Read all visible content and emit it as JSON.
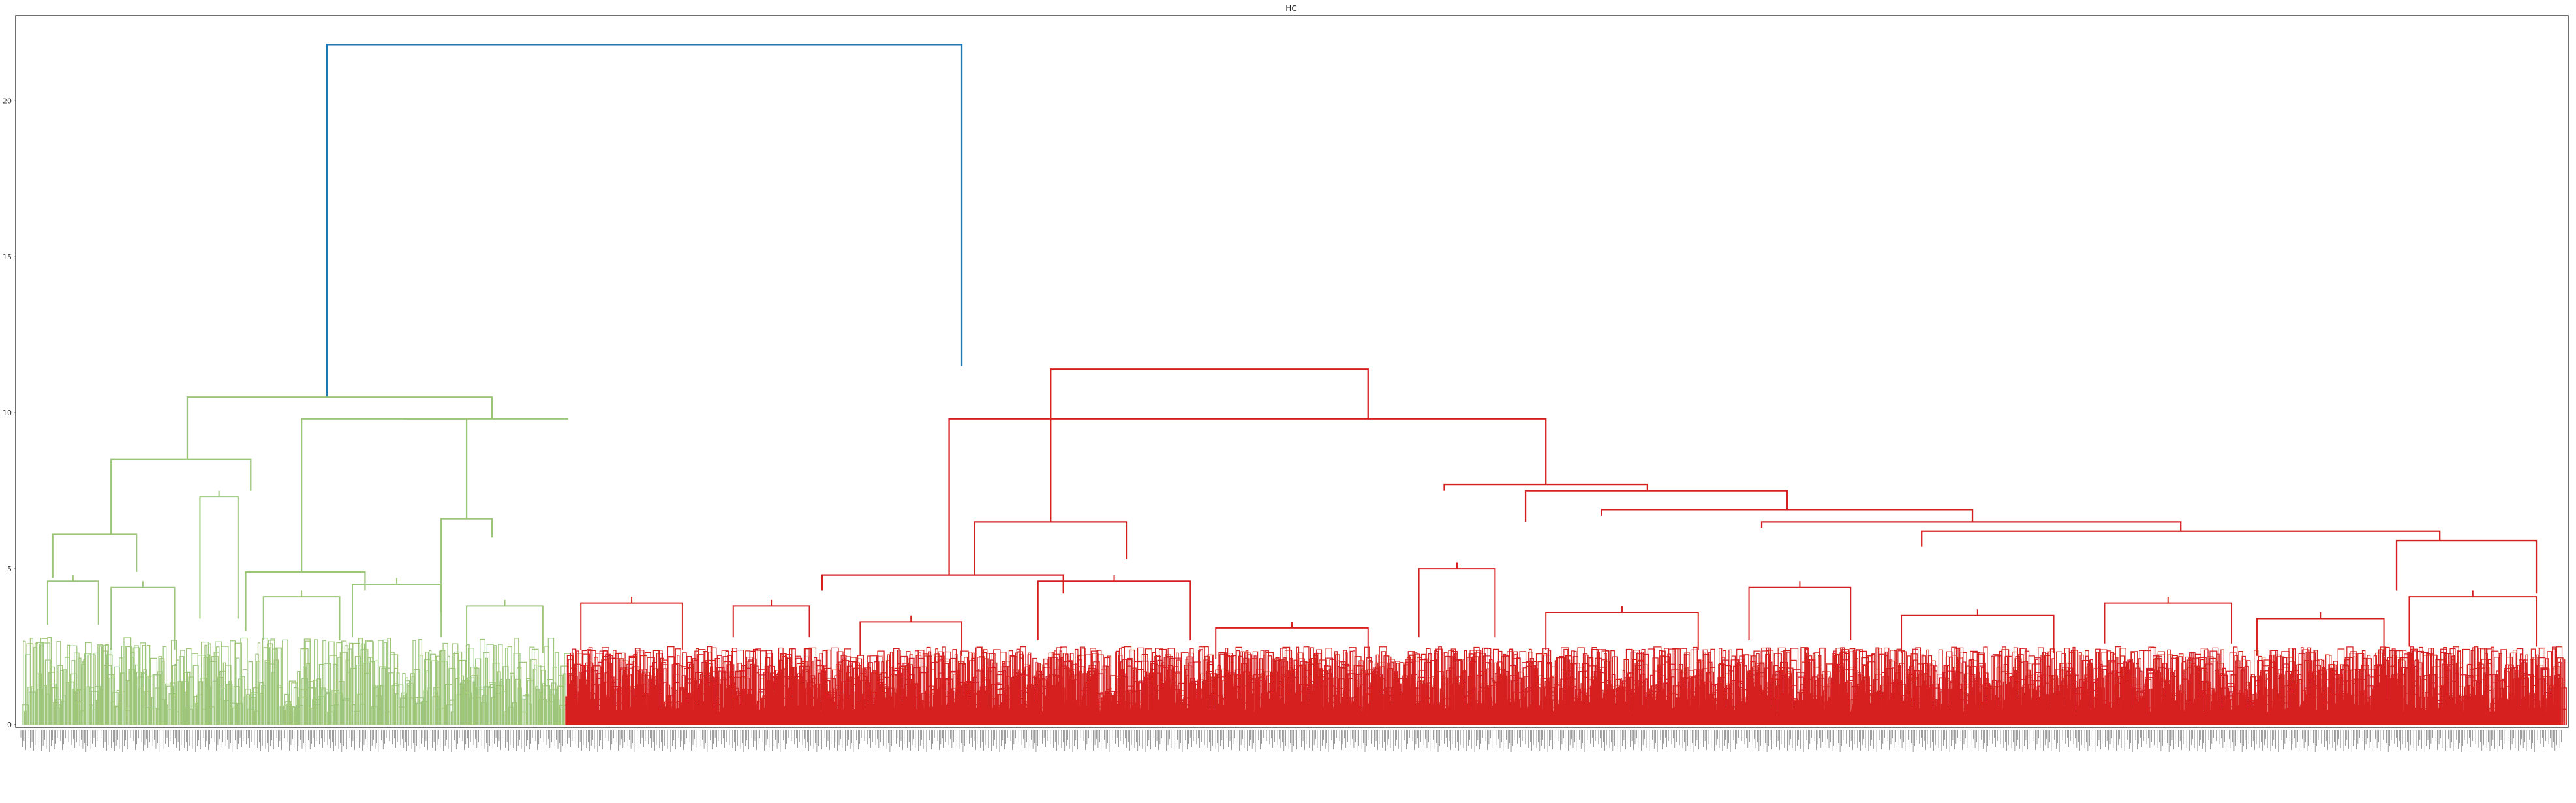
{
  "chart_data": {
    "type": "dendrogram",
    "title": "HC",
    "xlabel": "",
    "ylabel": "",
    "ylim": [
      0,
      22.5
    ],
    "yticks": [
      0,
      5,
      10,
      15,
      20
    ],
    "grid": false,
    "colors": {
      "root": "#1f77b4",
      "cluster_green": "#9dc67a",
      "cluster_red": "#d62020",
      "axis": "#333333"
    },
    "links": [
      {
        "x": [
          0.12,
          0.12,
          0.37,
          0.37
        ],
        "y": [
          10.5,
          21.8,
          21.8,
          11.5
        ],
        "color": "root"
      },
      {
        "x": [
          0.065,
          0.065,
          0.185,
          0.185
        ],
        "y": [
          8.5,
          10.5,
          10.5,
          9.8
        ],
        "color": "cluster_green"
      },
      {
        "x": [
          0.035,
          0.035,
          0.09,
          0.09
        ],
        "y": [
          6.1,
          8.5,
          8.5,
          7.5
        ],
        "color": "cluster_green"
      },
      {
        "x": [
          0.15,
          0.15,
          0.215,
          0.215
        ],
        "y": [
          9.8,
          9.8,
          9.8,
          9.8
        ],
        "color": "cluster_green"
      },
      {
        "x": [
          0.11,
          0.11,
          0.175,
          0.175
        ],
        "y": [
          4.9,
          9.8,
          9.8,
          6.6
        ],
        "color": "cluster_green"
      },
      {
        "x": [
          0.012,
          0.012,
          0.045,
          0.045
        ],
        "y": [
          4.7,
          6.1,
          6.1,
          4.9
        ],
        "color": "cluster_green"
      },
      {
        "x": [
          0.088,
          0.088,
          0.135,
          0.135
        ],
        "y": [
          3.0,
          4.9,
          4.9,
          4.3
        ],
        "color": "cluster_green"
      },
      {
        "x": [
          0.165,
          0.165,
          0.185,
          0.185
        ],
        "y": [
          3.6,
          6.6,
          6.6,
          6.0
        ],
        "color": "cluster_green"
      },
      {
        "x": [
          0.405,
          0.405,
          0.53,
          0.53
        ],
        "y": [
          6.5,
          11.4,
          11.4,
          9.8
        ],
        "color": "cluster_red"
      },
      {
        "x": [
          0.375,
          0.375,
          0.435,
          0.435
        ],
        "y": [
          4.8,
          6.5,
          6.5,
          5.3
        ],
        "color": "cluster_red"
      },
      {
        "x": [
          0.365,
          0.365,
          0.6,
          0.6
        ],
        "y": [
          4.8,
          9.8,
          9.8,
          7.7
        ],
        "color": "cluster_red"
      },
      {
        "x": [
          0.315,
          0.315,
          0.41,
          0.41
        ],
        "y": [
          4.3,
          4.8,
          4.8,
          4.2
        ],
        "color": "cluster_red"
      },
      {
        "x": [
          0.56,
          0.56,
          0.64,
          0.64
        ],
        "y": [
          7.5,
          7.7,
          7.7,
          7.5
        ],
        "color": "cluster_red"
      },
      {
        "x": [
          0.592,
          0.592,
          0.695,
          0.695
        ],
        "y": [
          6.5,
          7.5,
          7.5,
          6.9
        ],
        "color": "cluster_red"
      },
      {
        "x": [
          0.622,
          0.622,
          0.768,
          0.768
        ],
        "y": [
          6.7,
          6.9,
          6.9,
          6.5
        ],
        "color": "cluster_red"
      },
      {
        "x": [
          0.685,
          0.685,
          0.85,
          0.85
        ],
        "y": [
          6.3,
          6.5,
          6.5,
          6.2
        ],
        "color": "cluster_red"
      },
      {
        "x": [
          0.748,
          0.748,
          0.952,
          0.952
        ],
        "y": [
          5.7,
          6.2,
          6.2,
          5.9
        ],
        "color": "cluster_red"
      },
      {
        "x": [
          0.935,
          0.935,
          0.99,
          0.99
        ],
        "y": [
          4.3,
          5.9,
          5.9,
          4.2
        ],
        "color": "cluster_red"
      }
    ]
  }
}
